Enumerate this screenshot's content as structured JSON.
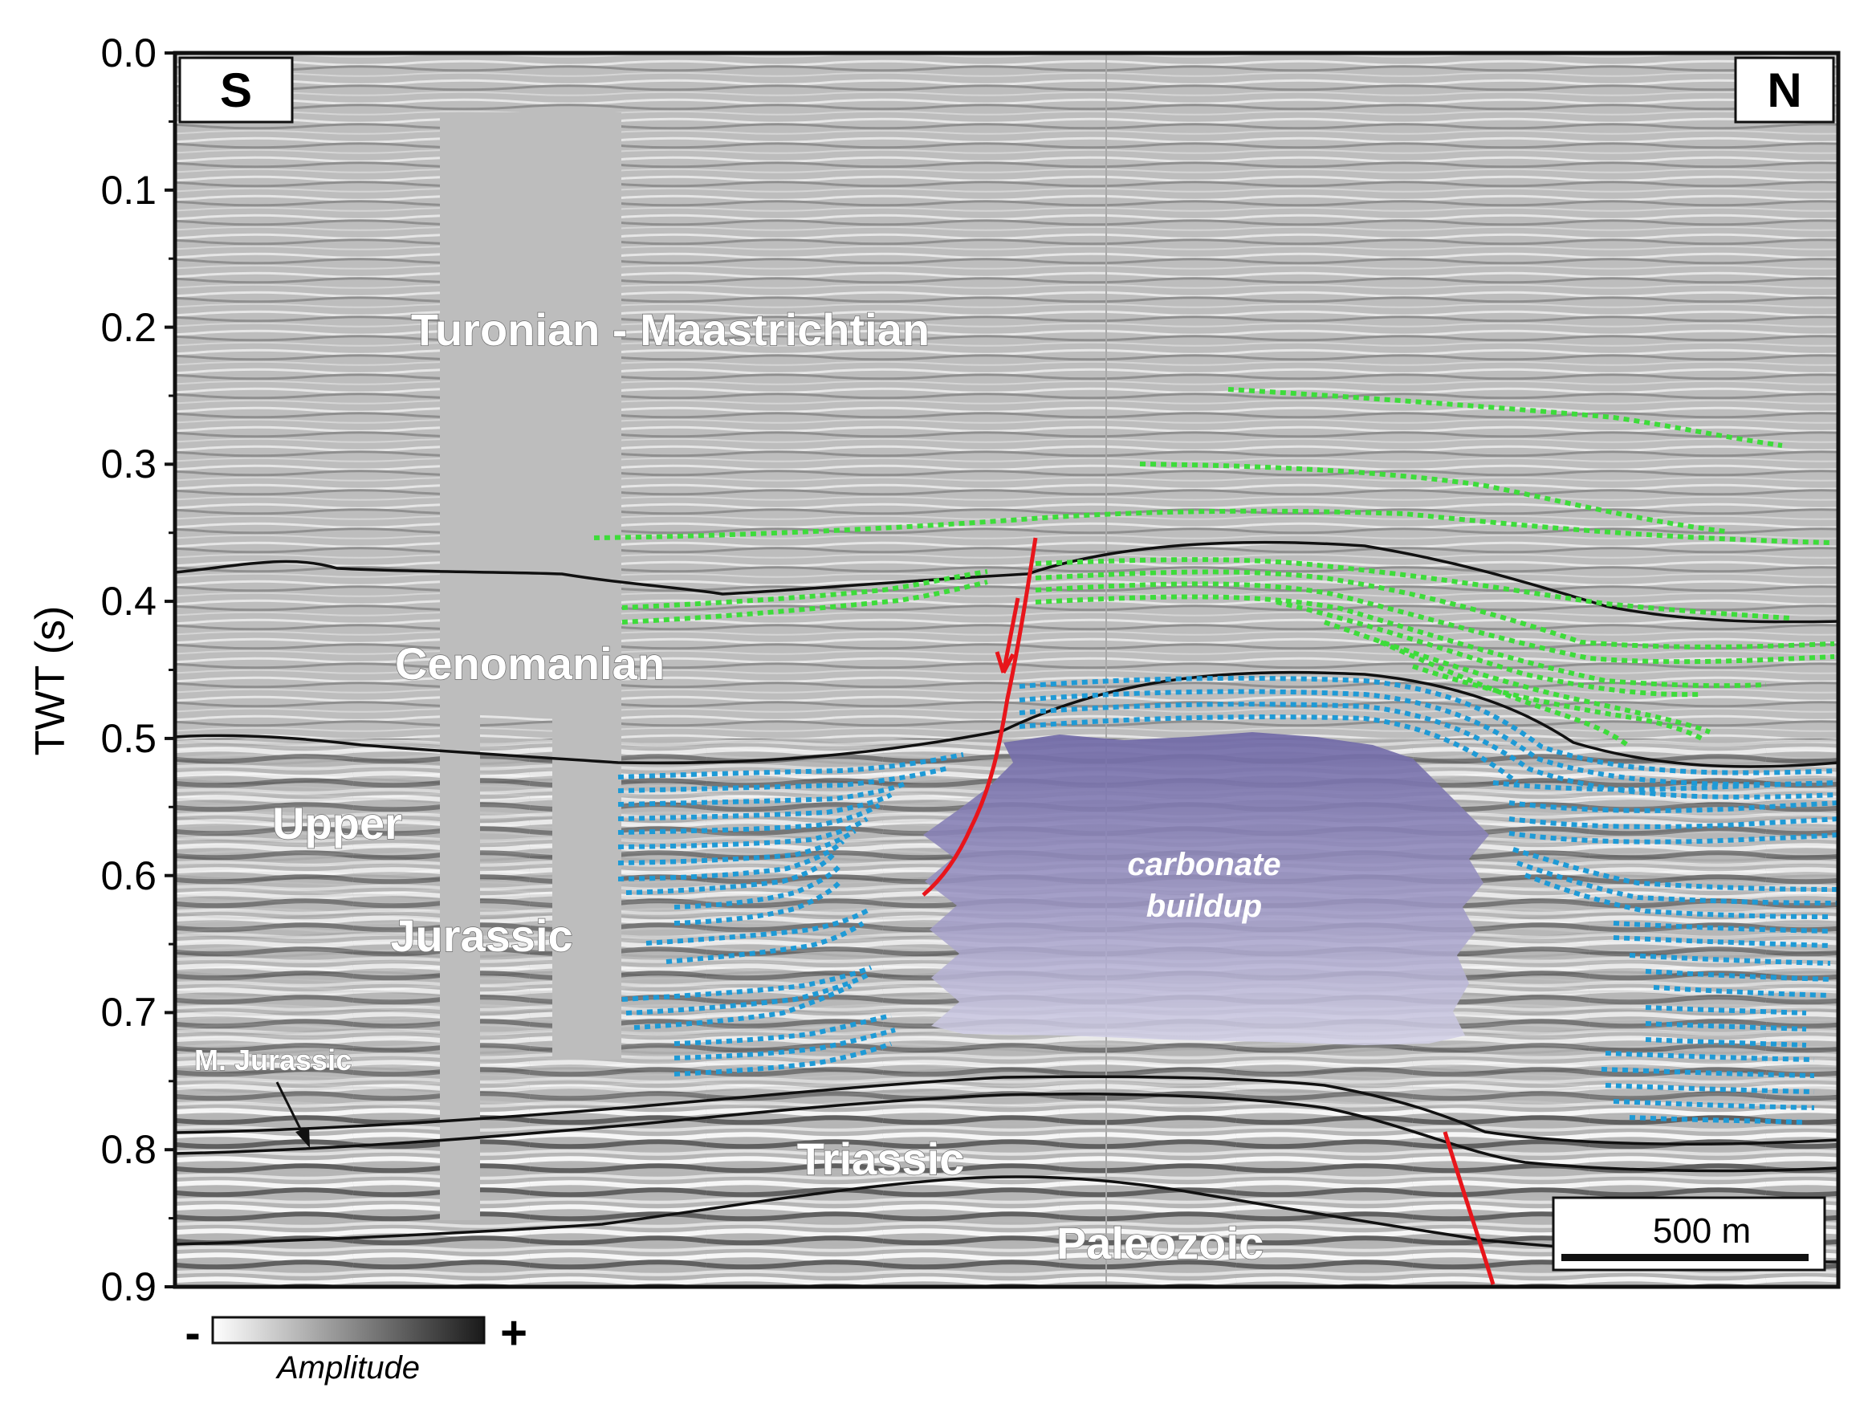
{
  "axis": {
    "title": "TWT (s)",
    "ticks": [
      "0.0",
      "0.1",
      "0.2",
      "0.3",
      "0.4",
      "0.5",
      "0.6",
      "0.7",
      "0.8",
      "0.9"
    ],
    "range": [
      0.0,
      0.9
    ]
  },
  "directions": {
    "left": "S",
    "right": "N"
  },
  "units": {
    "turonian_maastrichtian": "Turonian - Maastrichtian",
    "cenomanian": "Cenomanian",
    "upper": "Upper",
    "jurassic": "Jurassic",
    "m_jurassic": "M. Jurassic",
    "triassic": "Triassic",
    "paleozoic": "Paleozoic"
  },
  "buildup": {
    "line1": "carbonate",
    "line2": "buildup",
    "color": "#7b74aa"
  },
  "scale_bar": {
    "label": "500 m"
  },
  "amplitude_legend": {
    "minus": "-",
    "plus": "+",
    "title": "Amplitude"
  },
  "colors": {
    "seismic_background": "#bdbdbd",
    "horizon": "#111111",
    "fault": "#e8151b",
    "cretaceous_reflectors": "#3ddc3a",
    "jurassic_reflectors": "#1e9ad6"
  }
}
